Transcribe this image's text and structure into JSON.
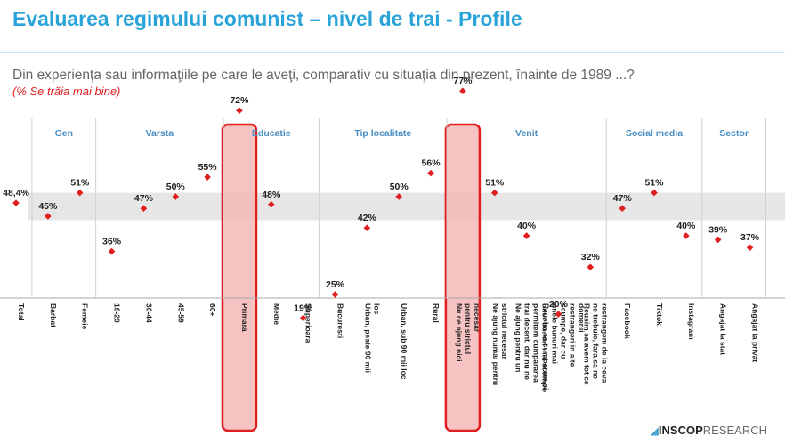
{
  "title": "Evaluarea regimului comunist – nivel de trai - Profile",
  "question": "Din experienţa sau informaţiile pe care le aveţi, comparativ cu situaţia din prezent, înainte de 1989 ...?",
  "subtitle": "(% Se trăia mai bine)",
  "logo": {
    "mark": "◢",
    "brand": "INSCOP",
    "suffix": "RESEARCH"
  },
  "colors": {
    "title": "#2aa3d9",
    "point": "#e02020",
    "highlight_fill": "#f6b7b7",
    "highlight_border": "#e02020",
    "band": "#e6e6e6",
    "group_label": "#4a8fc4"
  },
  "chart_data": {
    "type": "scatter",
    "ylim": [
      0,
      100
    ],
    "band": [
      44,
      51
    ],
    "groups": [
      {
        "label": "Gen",
        "start": 1,
        "end": 2
      },
      {
        "label": "Varsta",
        "start": 3,
        "end": 6
      },
      {
        "label": "Educatie",
        "start": 7,
        "end": 9
      },
      {
        "label": "Tip localitate",
        "start": 10,
        "end": 13
      },
      {
        "label": "Venit",
        "start": 14,
        "end": 18
      },
      {
        "label": "Social media",
        "start": 19,
        "end": 21
      },
      {
        "label": "Sector",
        "start": 22,
        "end": 23
      }
    ],
    "points": [
      {
        "category": "Total",
        "value": 48.4,
        "label": "48,4%"
      },
      {
        "category": "Barbat",
        "value": 45,
        "label": "45%"
      },
      {
        "category": "Femeie",
        "value": 51,
        "label": "51%"
      },
      {
        "category": "18-29",
        "value": 36,
        "label": "36%"
      },
      {
        "category": "30-44",
        "value": 47,
        "label": "47%"
      },
      {
        "category": "45-59",
        "value": 50,
        "label": "50%"
      },
      {
        "category": "60+",
        "value": 55,
        "label": "55%"
      },
      {
        "category": "Primara",
        "value": 72,
        "label": "72%",
        "highlight": true
      },
      {
        "category": "Medie",
        "value": 48,
        "label": "48%"
      },
      {
        "category": "Superioara",
        "value": 19,
        "label": "19%"
      },
      {
        "category": "Bucuresti",
        "value": 25,
        "label": "25%"
      },
      {
        "category": "Urban, peste 90 mii loc",
        "value": 42,
        "label": "42%"
      },
      {
        "category": "Urban, sub 90 mii loc",
        "value": 50,
        "label": "50%"
      },
      {
        "category": "Rural",
        "value": 56,
        "label": "56%"
      },
      {
        "category": "Nu ne ajung nici pentru strictul necesar",
        "value": 77,
        "label": "77%",
        "highlight": true
      },
      {
        "category": "Ne ajung numai pentru strictul necesar",
        "value": 51,
        "label": "51%"
      },
      {
        "category": "Ne ajung pentru un trai decent, dar nu ne permitem cumpararea unor bunuri mai scumpe",
        "value": 40,
        "label": "40%"
      },
      {
        "category": "Reusim sa cumparam si unele bunuri mai scumpe, dar cu restrangeri in alte domenii",
        "value": 20,
        "label": "20%"
      },
      {
        "category": "Reusim sa avem tot ce ne trebuie, fara sa ne restrangem de la ceva",
        "value": 32,
        "label": "32%"
      },
      {
        "category": "Facebook",
        "value": 47,
        "label": "47%"
      },
      {
        "category": "Tiktok",
        "value": 51,
        "label": "51%"
      },
      {
        "category": "Instagram",
        "value": 40,
        "label": "40%"
      },
      {
        "category": "Angajat la stat",
        "value": 39,
        "label": "39%"
      },
      {
        "category": "Angajat la privat",
        "value": 37,
        "label": "37%"
      }
    ]
  }
}
